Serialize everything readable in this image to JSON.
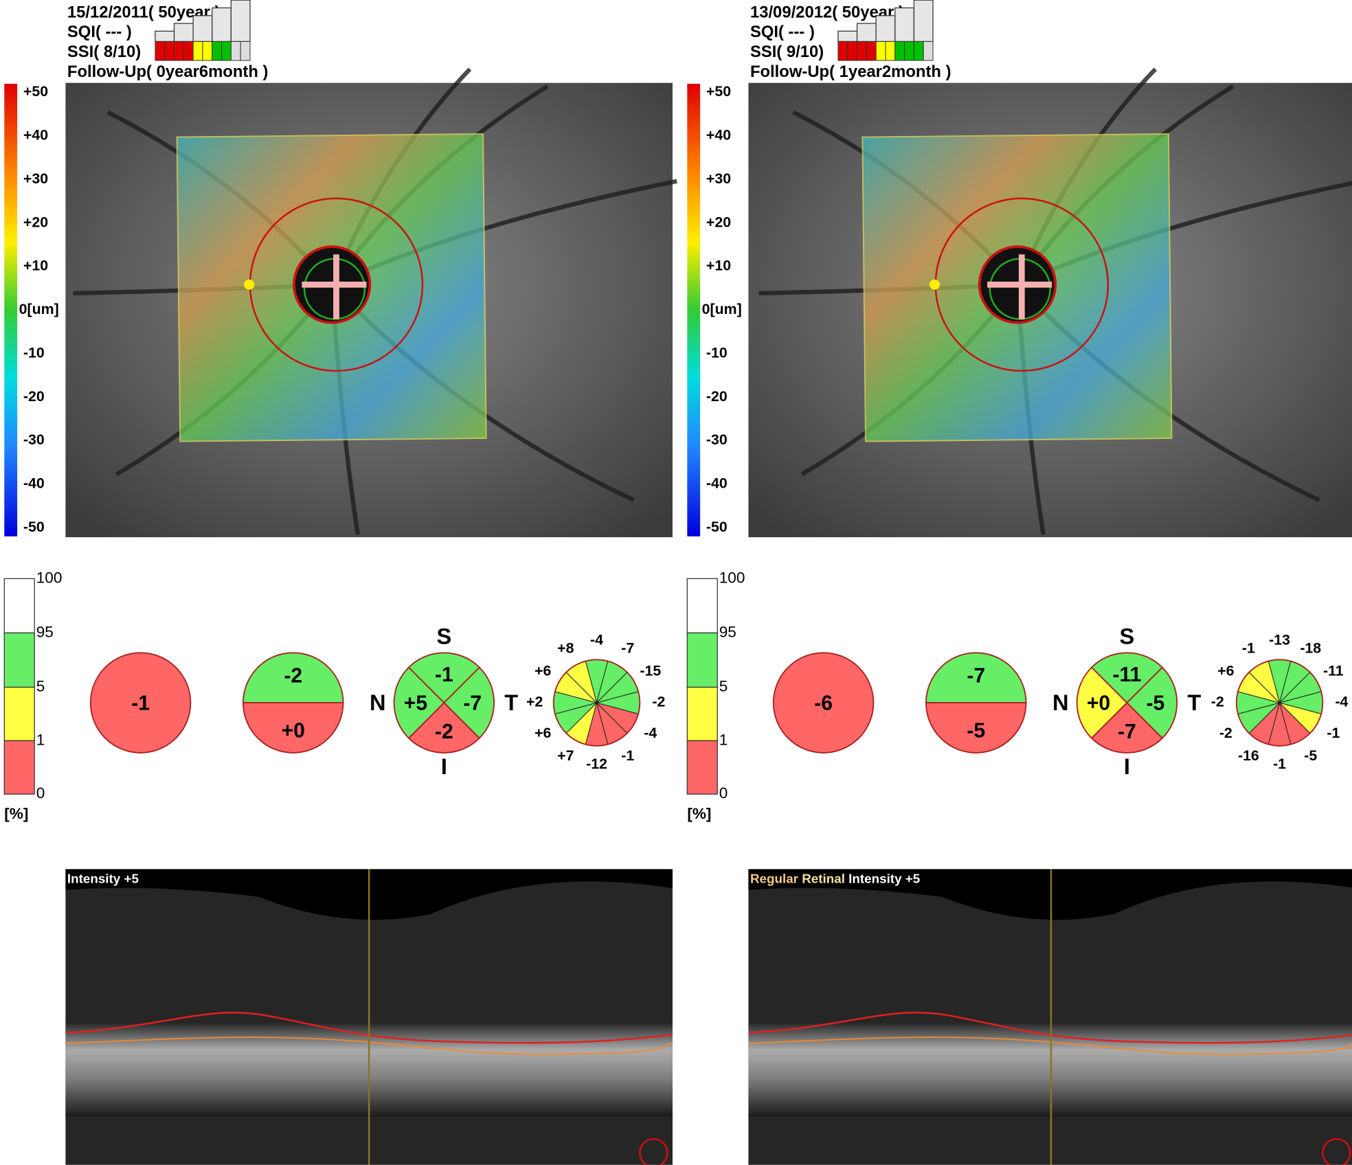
{
  "panels": [
    {
      "date_line": "15/12/2011( 50year )",
      "sqi": "SQI( --- )",
      "ssi": "SSI( 8/10)",
      "follow_up": "Follow-Up( 0year6month )",
      "ssi_cells": [
        "#e00000",
        "#e00000",
        "#e00000",
        "#e00000",
        "#ffff00",
        "#ffff00",
        "#00c000",
        "#00c000",
        "#dddddd",
        "#dddddd"
      ],
      "thickness_scale": [
        "+50",
        "+40",
        "+30",
        "+20",
        "+10",
        "0[um]",
        "-10",
        "-20",
        "-30",
        "-40",
        "-50"
      ],
      "percentile_scale": [
        "100",
        "95",
        "5",
        "1",
        "0"
      ],
      "percentile_unit": "[%]",
      "total": {
        "text": "-1",
        "color": "#ff6666"
      },
      "hemispheres": [
        {
          "text": "-2",
          "color": "#66ee66"
        },
        {
          "text": "+0",
          "color": "#ff6666"
        }
      ],
      "quadrant_labels": [
        "S",
        "T",
        "I",
        "N"
      ],
      "quadrants": [
        {
          "text": "-1",
          "color": "#66ee66"
        },
        {
          "text": "-7",
          "color": "#66ee66"
        },
        {
          "text": "-2",
          "color": "#ff6666"
        },
        {
          "text": "+5",
          "color": "#66ee66"
        }
      ],
      "clock_hours": [
        "-4",
        "-7",
        "-15",
        "-2",
        "-4",
        "-1",
        "-12",
        "+7",
        "+6",
        "+2",
        "+6",
        "+8"
      ],
      "clock_colors": [
        "#66ee66",
        "#66ee66",
        "#66ee66",
        "#66ee66",
        "#ff6666",
        "#ff6666",
        "#ff6666",
        "#ffff44",
        "#66ee66",
        "#66ee66",
        "#ffff44",
        "#ffff44"
      ],
      "bscan_tags": [
        {
          "text": "Intensity +5",
          "color": "#ffffff"
        }
      ]
    },
    {
      "date_line": "13/09/2012( 50year )",
      "sqi": "SQI( --- )",
      "ssi": "SSI( 9/10)",
      "follow_up": "Follow-Up( 1year2month )",
      "ssi_cells": [
        "#e00000",
        "#e00000",
        "#e00000",
        "#e00000",
        "#ffff00",
        "#ffff00",
        "#00c000",
        "#00c000",
        "#00c000",
        "#dddddd"
      ],
      "thickness_scale": [
        "+50",
        "+40",
        "+30",
        "+20",
        "+10",
        "0[um]",
        "-10",
        "-20",
        "-30",
        "-40",
        "-50"
      ],
      "percentile_scale": [
        "100",
        "95",
        "5",
        "1",
        "0"
      ],
      "percentile_unit": "[%]",
      "total": {
        "text": "-6",
        "color": "#ff6666"
      },
      "hemispheres": [
        {
          "text": "-7",
          "color": "#66ee66"
        },
        {
          "text": "-5",
          "color": "#ff6666"
        }
      ],
      "quadrant_labels": [
        "S",
        "T",
        "I",
        "N"
      ],
      "quadrants": [
        {
          "text": "-11",
          "color": "#66ee66"
        },
        {
          "text": "-5",
          "color": "#66ee66"
        },
        {
          "text": "-7",
          "color": "#ff6666"
        },
        {
          "text": "+0",
          "color": "#ffff44"
        }
      ],
      "clock_hours": [
        "-13",
        "-18",
        "-11",
        "-4",
        "-1",
        "-5",
        "-1",
        "-16",
        "-2",
        "-2",
        "+6",
        "-1"
      ],
      "clock_colors": [
        "#66ee66",
        "#66ee66",
        "#66ee66",
        "#66ee66",
        "#ffff44",
        "#ff6666",
        "#ff6666",
        "#ff6666",
        "#66ee66",
        "#66ee66",
        "#ffff44",
        "#ffff44"
      ],
      "bscan_tags": [
        {
          "text": "Regular",
          "color": "#f7c784"
        },
        {
          "text": "Retinal",
          "color": "#f3e3a0"
        },
        {
          "text": "Intensity +5",
          "color": "#ffffff"
        }
      ]
    }
  ]
}
